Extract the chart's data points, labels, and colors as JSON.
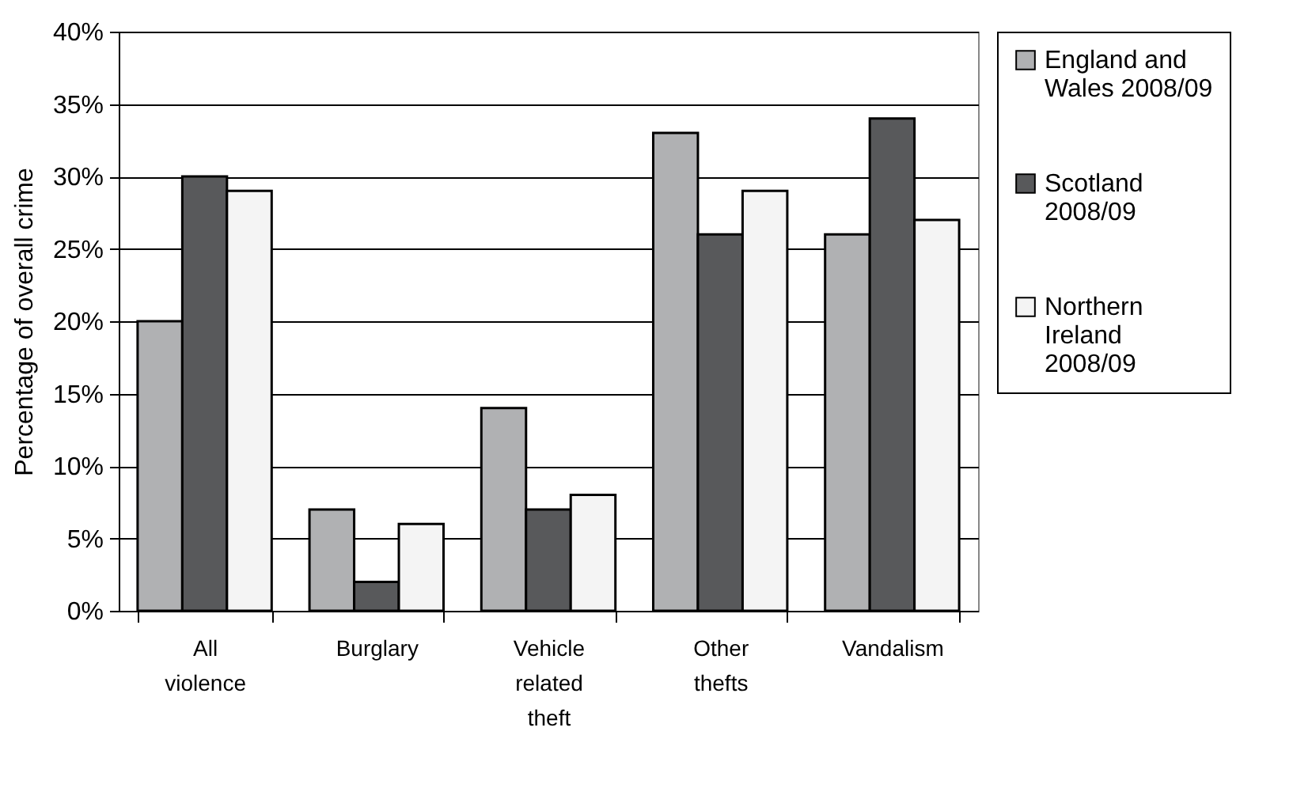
{
  "chart_data": {
    "type": "bar",
    "ylabel": "Percentage of overall crime",
    "categories": [
      "All violence",
      "Burglary",
      "Vehicle related theft",
      "Other thefts",
      "Vandalism"
    ],
    "series": [
      {
        "name": "England and Wales 2008/09",
        "color": "#b0b1b3",
        "values": [
          20,
          7,
          14,
          33,
          26
        ]
      },
      {
        "name": "Scotland 2008/09",
        "color": "#58595b",
        "values": [
          30,
          2,
          7,
          26,
          34
        ]
      },
      {
        "name": "Northern Ireland 2008/09",
        "color": "#f4f4f4",
        "values": [
          29,
          6,
          8,
          29,
          27
        ]
      }
    ],
    "ylim": [
      0,
      40
    ],
    "yticks": [
      {
        "value": 0,
        "label": "0%"
      },
      {
        "value": 5,
        "label": "5%"
      },
      {
        "value": 10,
        "label": "10%"
      },
      {
        "value": 15,
        "label": "15%"
      },
      {
        "value": 20,
        "label": "20%"
      },
      {
        "value": 25,
        "label": "25%"
      },
      {
        "value": 30,
        "label": "30%"
      },
      {
        "value": 35,
        "label": "35%"
      },
      {
        "value": 40,
        "label": "40%"
      }
    ],
    "grid": "y",
    "legend": "right"
  }
}
